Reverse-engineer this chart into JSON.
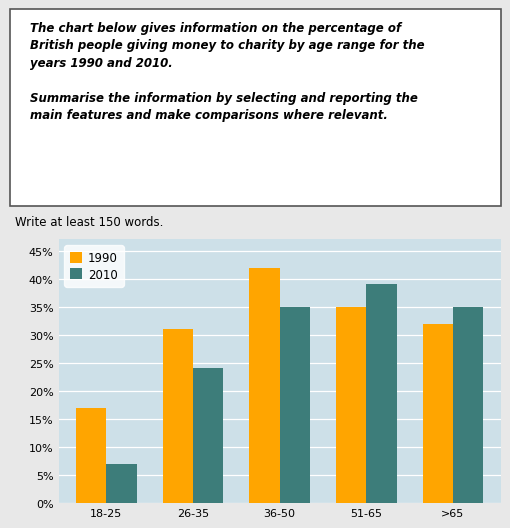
{
  "categories": [
    "18-25",
    "26-35",
    "36-50",
    "51-65",
    ">65"
  ],
  "values_1990": [
    17,
    31,
    42,
    35,
    32
  ],
  "values_2010": [
    7,
    24,
    35,
    39,
    35
  ],
  "color_1990": "#FFA500",
  "color_2010": "#3D7D7A",
  "legend_labels": [
    "1990",
    "2010"
  ],
  "yticks": [
    0,
    5,
    10,
    15,
    20,
    25,
    30,
    35,
    40,
    45
  ],
  "ytick_labels": [
    "0%",
    "5%",
    "10%",
    "15%",
    "20%",
    "25%",
    "30%",
    "35%",
    "40%",
    "45%"
  ],
  "ylim": [
    0,
    47
  ],
  "bar_width": 0.35,
  "chart_bg": "#CDE0E8",
  "fig_bg": "#E8E8E8",
  "box_text": "The chart below gives information on the percentage of\nBritish people giving money to charity by age range for the\nyears 1990 and 2010.\n\nSummarise the information by selecting and reporting the\nmain features and make comparisons where relevant.",
  "subtitle": "Write at least 150 words.",
  "title_fontsize": 8.5,
  "subtitle_fontsize": 8.5,
  "tick_fontsize": 8,
  "legend_fontsize": 8.5
}
